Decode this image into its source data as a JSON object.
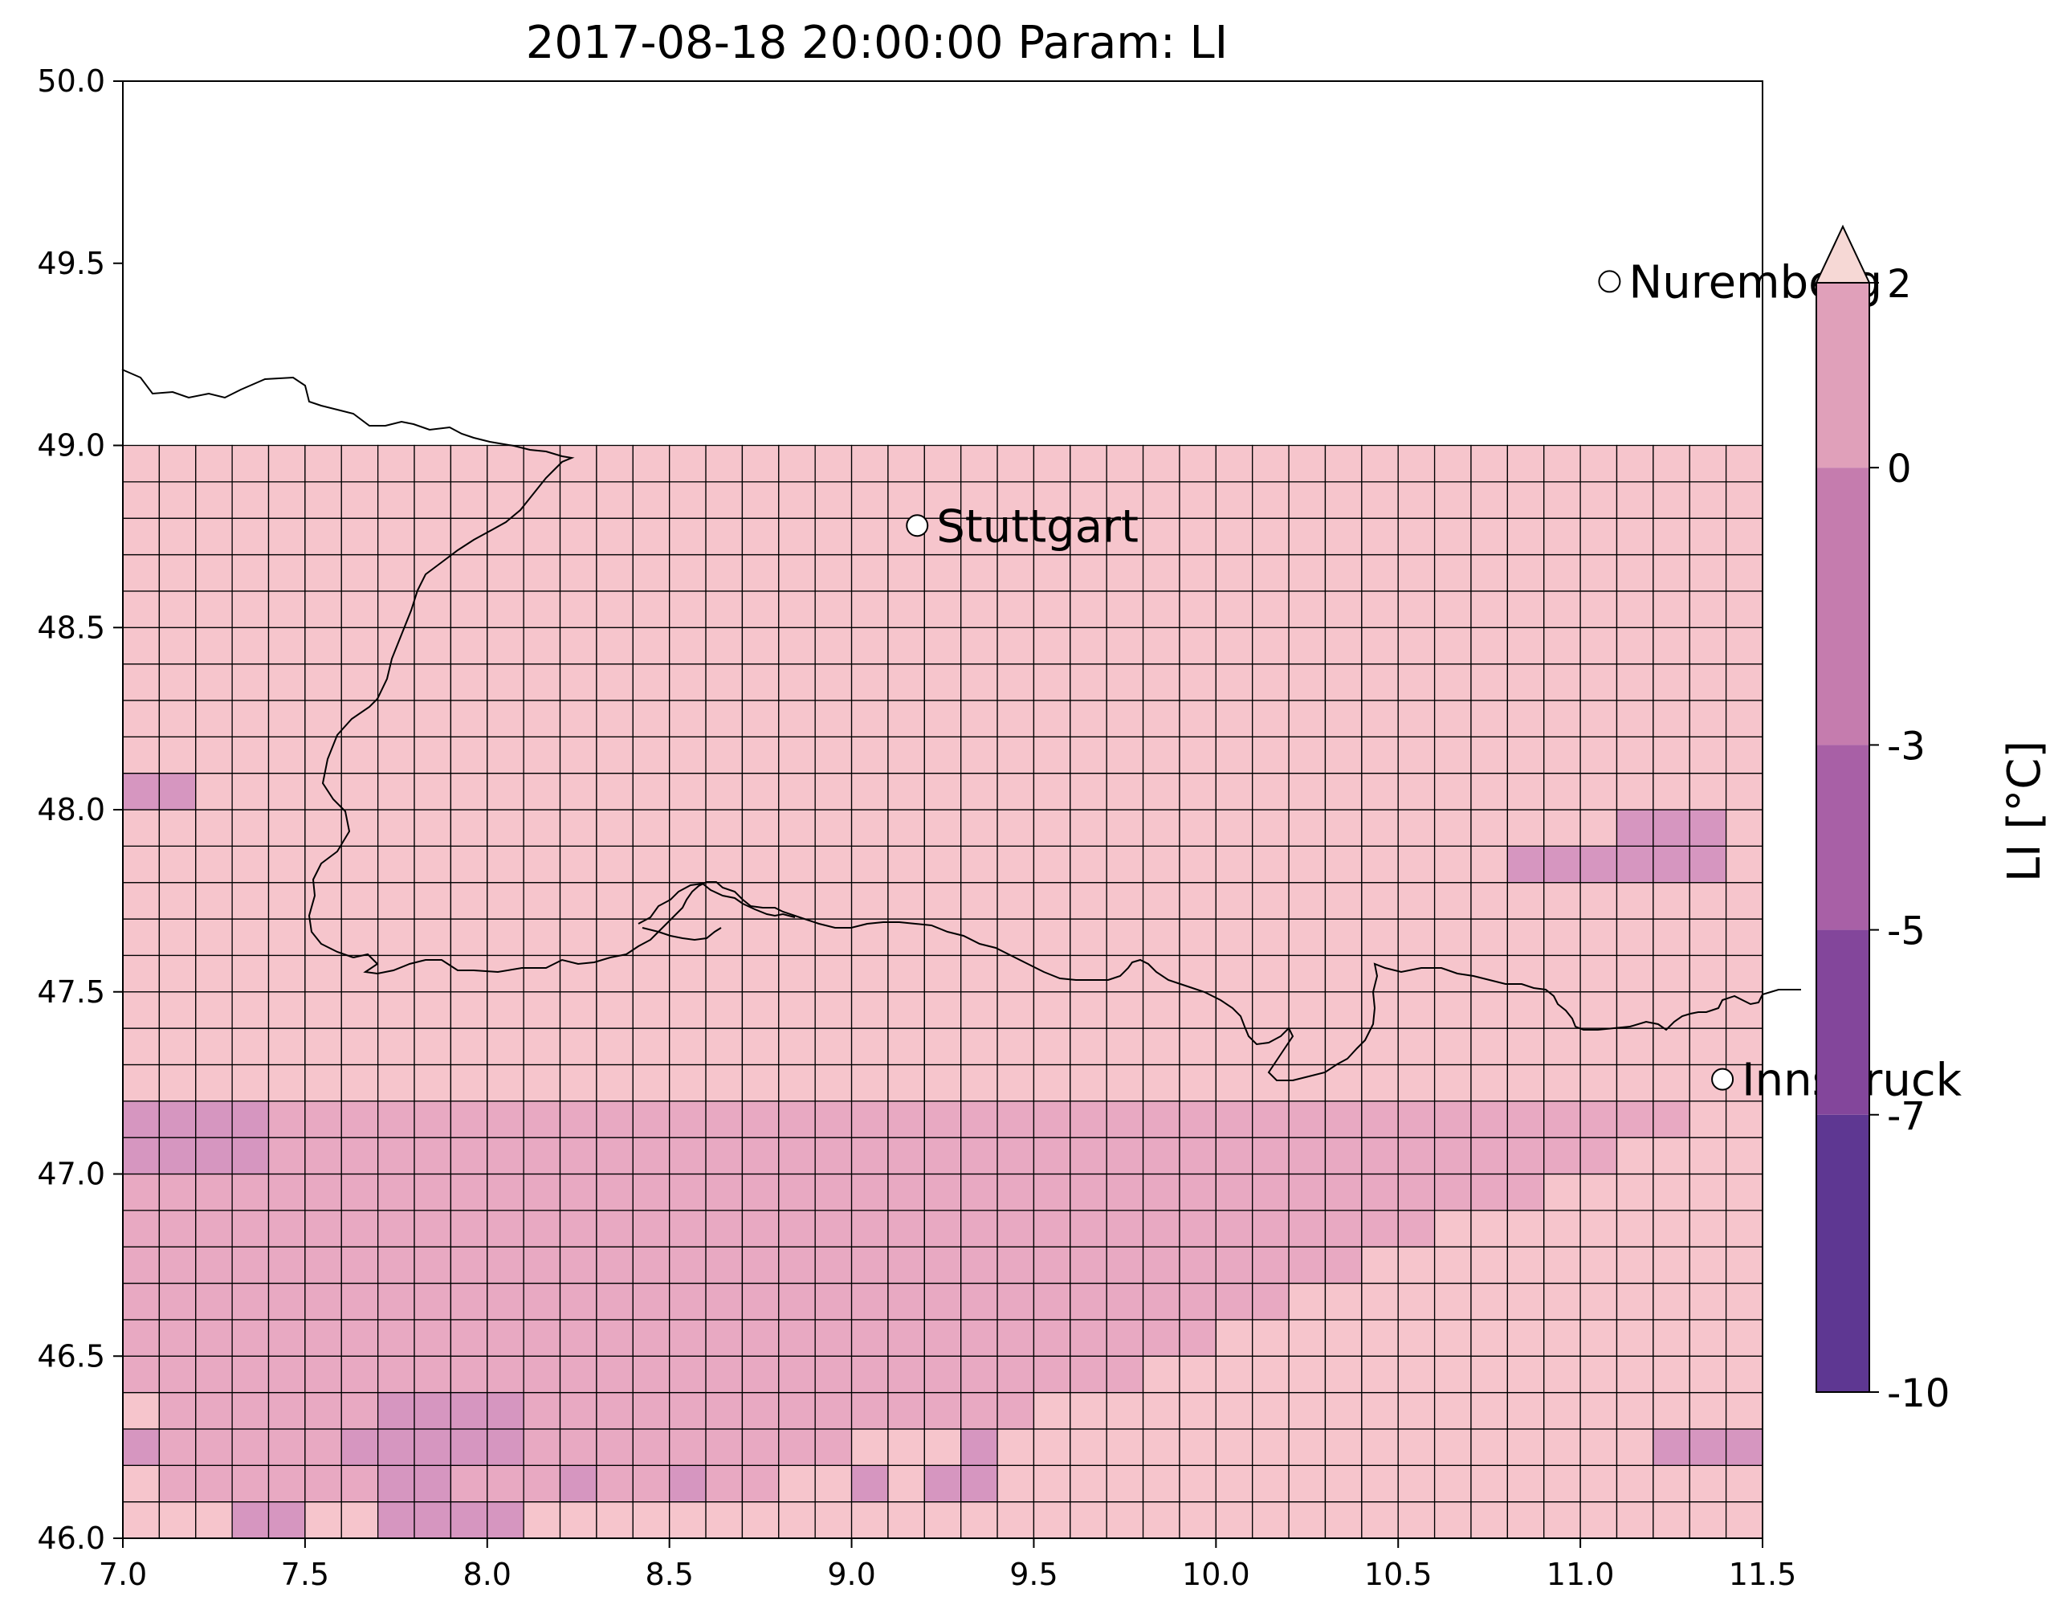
{
  "title": "2017-08-18 20:00:00 Param: LI",
  "chart_data": {
    "type": "heatmap",
    "title": "2017-08-18 20:00:00 Param: LI",
    "xlim": [
      7.0,
      11.5
    ],
    "ylim": [
      46.0,
      50.0
    ],
    "x_ticks": [
      "7.0",
      "7.5",
      "8.0",
      "8.5",
      "9.0",
      "9.5",
      "10.0",
      "10.5",
      "11.0",
      "11.5"
    ],
    "y_ticks": [
      "46.0",
      "46.5",
      "47.0",
      "47.5",
      "48.0",
      "48.5",
      "49.0",
      "49.5",
      "50.0"
    ],
    "grid": {
      "lon_start": 7.0,
      "lat_start": 46.0,
      "cell_deg": 0.1,
      "ncols": 45,
      "nrows": 30,
      "rows_south_to_north": [
        "aaaaaaaaaaaaaaaaaaaaaaaaaaaaaaaaaaaaaaaaaaaaa",
        "abbbbbbbbbbbbbbbbbaaaaaaaaaaaaaaaaaaaaaaaaaaa",
        "abbbbbbbbbbbbbbbbbbbaaaaaaaaaaaaaaaaaaaaaaaaa",
        "abbbbbbbbbbbbbbbbbbbbbbbbaaaaaaaaaaaaaaaaaaaa",
        "bbbbbbbbbbbbbbbbbbbbbbbbbbbbaaaaaaaaaaaaaaaaa",
        "bbbbbbbbbbbbbbbbbbbbbbbbbbbbbbaaaaaaaaaaaaaaa",
        "bbbbbbbbbbbbbbbbbbbbbbbbbbbbbbbbaaaaaaaaaaaaa",
        "bbbbbbbbbbbbbbbbbbbbbbbbbbbbbbbbbbaaaaaaaaaaa",
        "bbbbbbbbbbbbbbbbbbbbbbbbbbbbbbbbbbbbaaaaaaaaa",
        "bbbbbbbbbbbbbbbbbbbbbbbbbbbbbbbbbbbbbbbaaaaaa",
        "bbbbbbbbbbbbbbbbbbbbbbbbbbbbbbbbbbbbbbbbbaaaa",
        "bbbbbbbbbbbbbbbbbbbbbbbbbbbbbbbbbbbbbbbbbbbaa",
        "aaaaaaaaaaaaaaaaaaaaaaaaaaaaaaaaaaaaaaaaaaaaa",
        "aaaaaaaaaaaaaaaaaaaaaaaaaaaaaaaaaaaaaaaaaaaaa",
        "aaaaaaaaaaaaaaaaaaaaaaaaaaaaaaaaaaaaaaaaaaaaa",
        "aaaaaaaaaaaaaaaaaaaaaaaaaaaaaaaaaaaaaaaaaaaaa",
        "aaaaaaaaaaaaaaaaaaaaaaaaaaaaaaaaaaaaaaaaaaaaa",
        "aaaaaaaaaaaaaaaaaaaaaaaaaaaaaaaaaaaaaaaaaaaaa",
        "aaaaaaaaaaaaaaaaaaaaaaaaaaaaaaaaaaaaaaaaaaaaa",
        "aaaaaaaaaaaaaaaaaaaaaaaaaaaaaaaaaaaaaaaaaaaaa",
        "aaaaaaaaaaaaaaaaaaaaaaaaaaaaaaaaaaaaaaaaaaaaa",
        "aaaaaaaaaaaaaaaaaaaaaaaaaaaaaaaaaaaaaaaaaaaaa",
        "aaaaaaaaaaaaaaaaaaaaaaaaaaaaaaaaaaaaaaaaaaaaa",
        "aaaaaaaaaaaaaaaaaaaaaaaaaaaaaaaaaaaaaaaaaaaaa",
        "aaaaaaaaaaaaaaaaaaaaaaaaaaaaaaaaaaaaaaaaaaaaa",
        "aaaaaaaaaaaaaaaaaaaaaaaaaaaaaaaaaaaaaaaaaaaaa",
        "aaaaaaaaaaaaaaaaaaaaaaaaaaaaaaaaaaaaaaaaaaaaa",
        "aaaaaaaaaaaaaaaaaaaaaaaaaaaaaaaaaaaaaaaaaaaaa",
        "aaaaaaaaaaaaaaaaaaaaaaaaaaaaaaaaaaaaaaaaaaaaa",
        "aaaaaaaaaaaaaaaaaaaaaaaaaaaaaaaaaaaaaaaaaaaaa"
      ],
      "cell_colors": {
        "a": "#f6c5cc",
        "b": "#e8a9c2",
        "c": "#d696c0"
      },
      "overrides_c": [
        [
          0,
          3
        ],
        [
          0,
          4
        ],
        [
          0,
          7
        ],
        [
          0,
          8
        ],
        [
          0,
          9
        ],
        [
          0,
          10
        ],
        [
          1,
          7
        ],
        [
          1,
          8
        ],
        [
          1,
          12
        ],
        [
          1,
          15
        ],
        [
          1,
          20
        ],
        [
          1,
          22
        ],
        [
          1,
          23
        ],
        [
          2,
          0
        ],
        [
          2,
          6
        ],
        [
          2,
          7
        ],
        [
          2,
          8
        ],
        [
          2,
          9
        ],
        [
          2,
          10
        ],
        [
          2,
          23
        ],
        [
          2,
          42
        ],
        [
          2,
          43
        ],
        [
          2,
          44
        ],
        [
          3,
          7
        ],
        [
          3,
          8
        ],
        [
          3,
          9
        ],
        [
          3,
          10
        ],
        [
          10,
          0
        ],
        [
          10,
          1
        ],
        [
          10,
          2
        ],
        [
          10,
          3
        ],
        [
          11,
          0
        ],
        [
          11,
          1
        ],
        [
          11,
          2
        ],
        [
          11,
          3
        ],
        [
          18,
          38
        ],
        [
          18,
          39
        ],
        [
          18,
          40
        ],
        [
          18,
          41
        ],
        [
          18,
          42
        ],
        [
          18,
          43
        ],
        [
          19,
          41
        ],
        [
          19,
          42
        ],
        [
          19,
          43
        ],
        [
          20,
          0
        ],
        [
          20,
          1
        ]
      ]
    },
    "colorbar": {
      "label": "LI [°C]",
      "levels": [
        -10,
        -7,
        -5,
        -3,
        0,
        2
      ],
      "tick_labels": [
        "-10",
        "-7",
        "-5",
        "-3",
        "0",
        "2"
      ],
      "colors": [
        "#5e3792",
        "#83469b",
        "#a860a6",
        "#c57cae",
        "#e0a0ba"
      ],
      "extend_max_color": "#f6d8d5"
    },
    "cities": [
      {
        "name": "Stuttgart",
        "lon": 9.18,
        "lat": 48.78
      },
      {
        "name": "Nuremberg",
        "lon": 11.08,
        "lat": 49.45
      },
      {
        "name": "Innsbruck",
        "lon": 11.39,
        "lat": 47.26
      }
    ]
  }
}
